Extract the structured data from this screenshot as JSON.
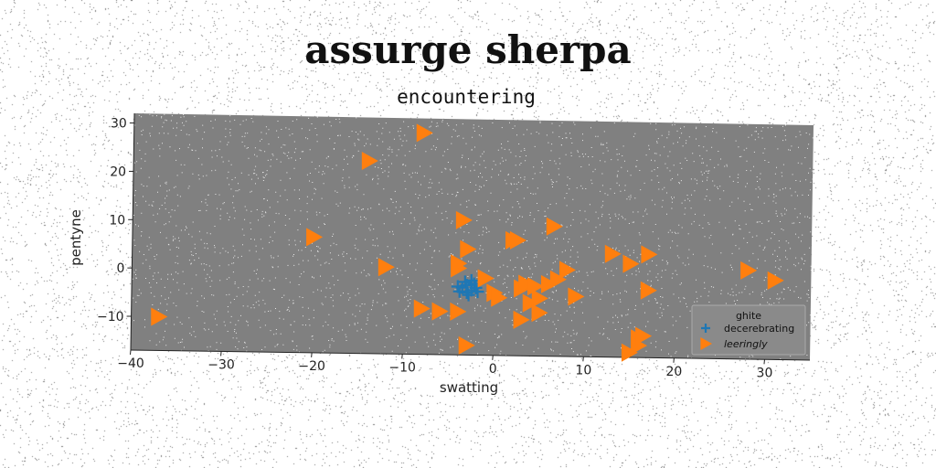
{
  "title": "assurge sherpa",
  "chart_data": {
    "type": "scatter",
    "title": "encountering",
    "xlabel": "swatting",
    "ylabel": "pentyne",
    "xlim": [
      -40,
      35
    ],
    "ylim": [
      -17,
      32
    ],
    "xticks": [
      -40,
      -30,
      -20,
      -10,
      0,
      10,
      20,
      30
    ],
    "yticks": [
      -10,
      0,
      10,
      20,
      30
    ],
    "grid": false,
    "legend": {
      "title": "ghite",
      "placement": "bottom-right"
    },
    "series": [
      {
        "name": "decerebrating",
        "marker": "plus",
        "color": "#1f77b4",
        "points": [
          [
            -3.5,
            -3
          ],
          [
            -3,
            -2.5
          ],
          [
            -2.5,
            -3.5
          ],
          [
            -3,
            -4
          ],
          [
            -2,
            -3
          ],
          [
            -3.8,
            -3.8
          ],
          [
            -2.2,
            -2.2
          ],
          [
            -3.2,
            -1.8
          ],
          [
            -2.8,
            -4.5
          ],
          [
            -1.8,
            -3.8
          ],
          [
            -4,
            -2.8
          ],
          [
            -2.5,
            -1.5
          ]
        ]
      },
      {
        "name": "leeringly",
        "marker": "triangle-right",
        "color": "#ff7f0e",
        "points": [
          [
            -37,
            -10
          ],
          [
            -20,
            7
          ],
          [
            -14,
            23
          ],
          [
            -12,
            1
          ],
          [
            -8,
            29
          ],
          [
            -8,
            -7.5
          ],
          [
            -6,
            -8
          ],
          [
            -4,
            -8
          ],
          [
            -4,
            1
          ],
          [
            -4,
            2
          ],
          [
            -3.5,
            11
          ],
          [
            -3,
            5
          ],
          [
            -3,
            -15
          ],
          [
            -1,
            -1
          ],
          [
            0,
            -4
          ],
          [
            0.5,
            -5
          ],
          [
            2,
            7
          ],
          [
            2.5,
            7
          ],
          [
            3,
            -3
          ],
          [
            3,
            -9.5
          ],
          [
            3.5,
            -2
          ],
          [
            4,
            -6
          ],
          [
            4.5,
            -2.5
          ],
          [
            5,
            -5
          ],
          [
            5,
            -8
          ],
          [
            6,
            -2
          ],
          [
            6.5,
            10
          ],
          [
            7,
            -1
          ],
          [
            8,
            1
          ],
          [
            9,
            -4.5
          ],
          [
            13,
            4.5
          ],
          [
            15,
            2.5
          ],
          [
            15,
            -16
          ],
          [
            16,
            -13
          ],
          [
            16,
            -14.5
          ],
          [
            16.5,
            -12.5
          ],
          [
            17,
            -3
          ],
          [
            17,
            4.5
          ],
          [
            28,
            1.5
          ],
          [
            31,
            -0.5
          ]
        ]
      }
    ]
  }
}
